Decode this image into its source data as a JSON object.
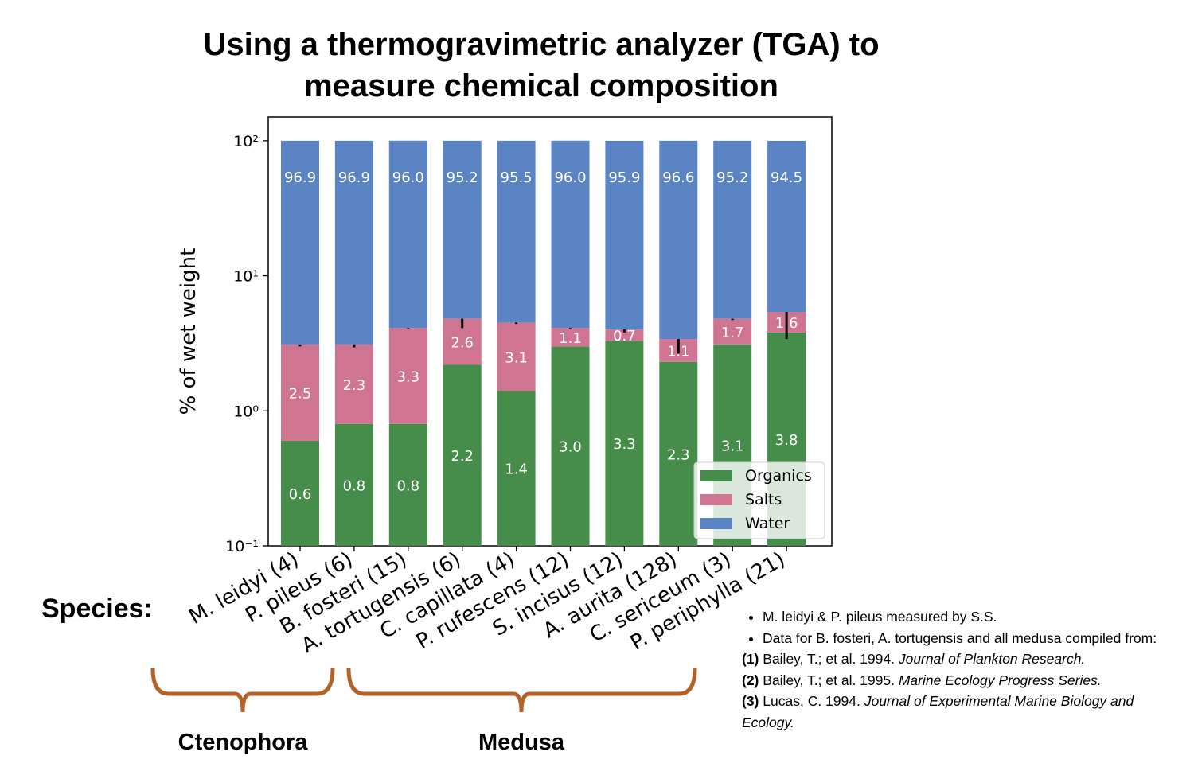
{
  "chart_data": {
    "type": "stacked-bar",
    "title": "Using a thermogravimetric analyzer (TGA) to measure chemical composition",
    "ylabel": "% of wet weight",
    "xlabel": "Species:",
    "categories": [
      "M. leidyi (4)",
      "P. pileus (6)",
      "B. fosteri (15)",
      "A. tortugensis (6)",
      "C. capillata (4)",
      "P. rufescens (12)",
      "S. incisus (12)",
      "A. aurita (128)",
      "C. sericeum (3)",
      "P. periphylla (21)"
    ],
    "series": [
      {
        "name": "Organics",
        "color": "#468c4b",
        "values": [
          0.6,
          0.8,
          0.8,
          2.2,
          1.4,
          3.0,
          3.3,
          2.3,
          3.1,
          3.8
        ],
        "value_labels": [
          "0.6",
          "0.8",
          "0.8",
          "2.2",
          "1.4",
          "3.0",
          "3.3",
          "2.3",
          "3.1",
          "3.8"
        ]
      },
      {
        "name": "Salts",
        "color": "#cf7591",
        "values": [
          2.5,
          2.3,
          3.3,
          2.6,
          3.1,
          1.1,
          0.7,
          1.1,
          1.7,
          1.6
        ],
        "value_labels": [
          "2.5",
          "2.3",
          "3.3",
          "2.6",
          "3.1",
          "1.1",
          "0.7",
          "1.1",
          "1.7",
          "1.6"
        ],
        "errors": [
          0.1,
          0.15,
          0.05,
          0.7,
          0.1,
          0.05,
          0.2,
          0.75,
          0.1,
          2.0
        ]
      },
      {
        "name": "Water",
        "color": "#5a84c4",
        "values": [
          96.9,
          96.9,
          96.0,
          95.2,
          95.5,
          96.0,
          95.9,
          96.6,
          95.2,
          94.5
        ],
        "value_labels": [
          "96.9",
          "96.9",
          "96.0",
          "95.2",
          "95.5",
          "96.0",
          "95.9",
          "96.6",
          "95.2",
          "94.5"
        ]
      }
    ],
    "log_scale": true,
    "ylim": [
      0.1,
      150
    ],
    "yticks": [
      {
        "value": 0.1,
        "label": "10⁻¹"
      },
      {
        "value": 1,
        "label": "10⁰"
      },
      {
        "value": 10,
        "label": "10¹"
      },
      {
        "value": 100,
        "label": "10²"
      }
    ],
    "legend": "lower right"
  },
  "groups": [
    {
      "label": "Ctenophora"
    },
    {
      "label": "Medusa"
    }
  ],
  "notes": {
    "bullets": [
      "M. leidyi & P. pileus measured by S.S.",
      "Data for B. fosteri, A. tortugensis and all medusa compiled from:"
    ],
    "references": [
      {
        "number": "(1)",
        "text": "Bailey, T.; et al. 1994.",
        "journal": "Journal of Plankton Research."
      },
      {
        "number": "(2)",
        "text": "Bailey, T.; et al. 1995.",
        "journal": "Marine Ecology Progress Series."
      },
      {
        "number": "(3)",
        "text": "Lucas, C. 1994.",
        "journal": "Journal of Experimental Marine Biology and Ecology."
      }
    ]
  }
}
